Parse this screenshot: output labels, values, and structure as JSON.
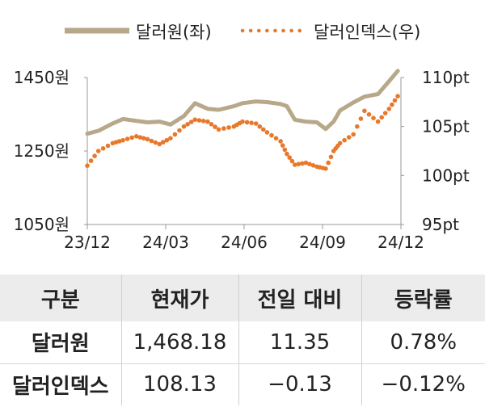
{
  "chart_data": {
    "type": "line",
    "legend": [
      {
        "name": "달러원(좌)",
        "style": "solid",
        "color": "#b8a88a"
      },
      {
        "name": "달러인덱스(우)",
        "style": "dotted",
        "color": "#e8782a"
      }
    ],
    "legend_position": "top",
    "x_tick_labels": [
      "23/12",
      "24/03",
      "24/06",
      "24/09",
      "24/12"
    ],
    "x_range": [
      "2023-12-01",
      "2024-12-31"
    ],
    "y_left": {
      "ticks": [
        "1450원",
        "1250원",
        "1050원"
      ],
      "values": [
        1450,
        1250,
        1050
      ],
      "range": [
        1050,
        1450
      ]
    },
    "y_right": {
      "ticks": [
        "110pt",
        "105pt",
        "100pt",
        "95pt"
      ],
      "values": [
        110,
        105,
        100,
        95
      ],
      "range": [
        95,
        110
      ]
    },
    "grid": false,
    "series": [
      {
        "name": "달러원(좌)",
        "axis": "left",
        "color": "#b8a88a",
        "x": [
          "2023-12-01",
          "2023-12-15",
          "2024-01-02",
          "2024-01-15",
          "2024-02-01",
          "2024-02-15",
          "2024-03-01",
          "2024-03-15",
          "2024-04-01",
          "2024-04-15",
          "2024-05-01",
          "2024-05-15",
          "2024-06-03",
          "2024-06-14",
          "2024-07-01",
          "2024-07-15",
          "2024-08-01",
          "2024-08-09",
          "2024-08-19",
          "2024-09-02",
          "2024-09-16",
          "2024-09-27",
          "2024-10-07",
          "2024-10-15",
          "2024-11-01",
          "2024-11-15",
          "2024-12-02",
          "2024-12-16",
          "2024-12-27"
        ],
        "values": [
          1297,
          1305,
          1325,
          1337,
          1332,
          1328,
          1330,
          1322,
          1345,
          1380,
          1365,
          1362,
          1372,
          1380,
          1385,
          1383,
          1378,
          1372,
          1335,
          1330,
          1328,
          1310,
          1330,
          1360,
          1382,
          1398,
          1405,
          1440,
          1468
        ]
      },
      {
        "name": "달러인덱스(우)",
        "axis": "right",
        "color": "#e8782a",
        "x": [
          "2023-12-01",
          "2023-12-15",
          "2024-01-02",
          "2024-01-15",
          "2024-02-01",
          "2024-02-15",
          "2024-03-01",
          "2024-03-15",
          "2024-04-01",
          "2024-04-15",
          "2024-05-01",
          "2024-05-15",
          "2024-06-03",
          "2024-06-14",
          "2024-07-01",
          "2024-07-15",
          "2024-08-01",
          "2024-08-09",
          "2024-08-19",
          "2024-09-02",
          "2024-09-16",
          "2024-09-27",
          "2024-10-07",
          "2024-10-15",
          "2024-11-01",
          "2024-11-15",
          "2024-12-02",
          "2024-12-16",
          "2024-12-27"
        ],
        "values": [
          101.0,
          102.5,
          103.3,
          103.6,
          104.0,
          103.7,
          103.2,
          103.8,
          105.0,
          105.7,
          105.5,
          104.7,
          105.0,
          105.5,
          105.3,
          104.4,
          103.5,
          102.2,
          101.1,
          101.3,
          100.9,
          100.7,
          102.5,
          103.3,
          104.2,
          106.6,
          105.5,
          106.8,
          108.1
        ]
      }
    ]
  },
  "table": {
    "headers": [
      "구분",
      "현재가",
      "전일 대비",
      "등락률"
    ],
    "rows": [
      [
        "달러원",
        "1,468.18",
        "11.35",
        "0.78%"
      ],
      [
        "달러인덱스",
        "108.13",
        "−0.13",
        "−0.12%"
      ]
    ]
  }
}
